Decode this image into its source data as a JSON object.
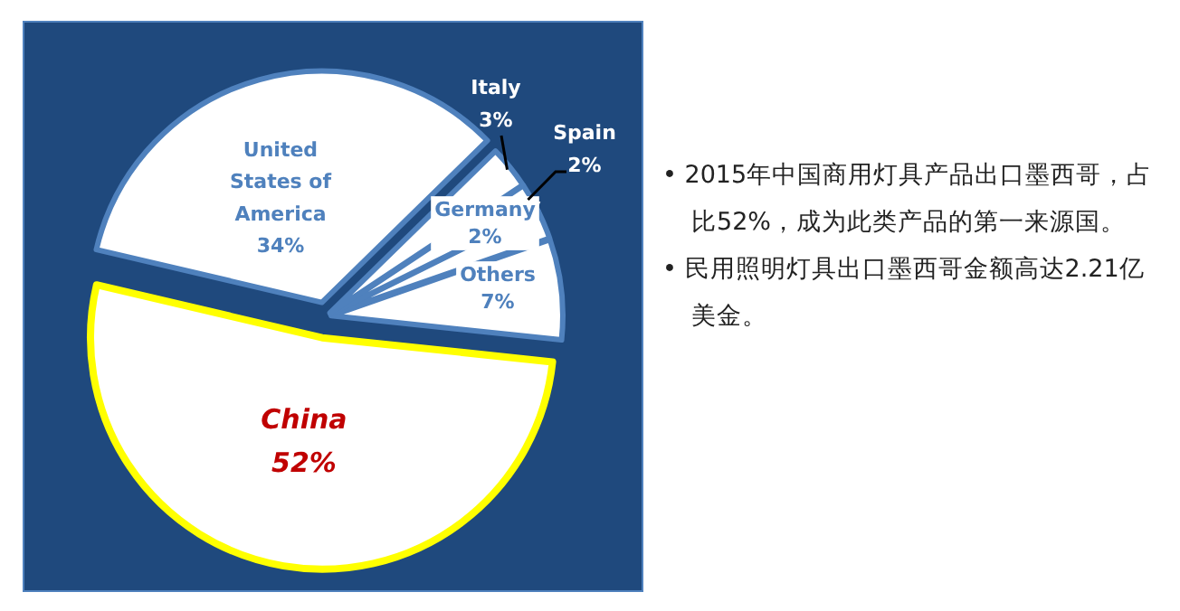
{
  "chart_data": {
    "type": "pie",
    "categories": [
      "Others",
      "Germany",
      "Spain",
      "Italy",
      "United States of America",
      "China"
    ],
    "values": [
      7,
      2,
      2,
      3,
      34,
      52
    ],
    "value_labels": [
      "7%",
      "2%",
      "2%",
      "3%",
      "34%",
      "52%"
    ],
    "colors": [
      "#ffffff",
      "#ffffff",
      "#ffffff",
      "#ffffff",
      "#ffffff",
      "#ffffff"
    ],
    "annotations": [
      "• 2015年中国商用灯具产品出口墨西哥，占比52%，成为此类产品的第一来源国。",
      "• 民用照明灯具出口墨西哥金额高达2.21亿美金。"
    ]
  }
}
